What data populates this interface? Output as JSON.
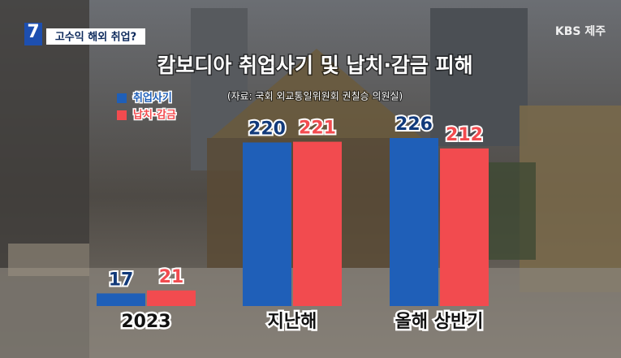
{
  "broadcast": {
    "channel_number": "7",
    "topic": "고수익 해외 취업?",
    "station": "KBS 제주"
  },
  "chart_data": {
    "type": "bar",
    "title": "캄보디아 취업사기 및 납치·감금 피해",
    "subtitle": "(자료: 국회 외교통일위원회 권칠승 의원실)",
    "categories": [
      "2023",
      "지난해",
      "올해 상반기"
    ],
    "series": [
      {
        "name": "취업사기",
        "color": "#1f5fb8",
        "values": [
          17,
          220,
          226
        ]
      },
      {
        "name": "납치·감금",
        "color": "#f24b4f",
        "values": [
          21,
          221,
          212
        ]
      }
    ]
  }
}
